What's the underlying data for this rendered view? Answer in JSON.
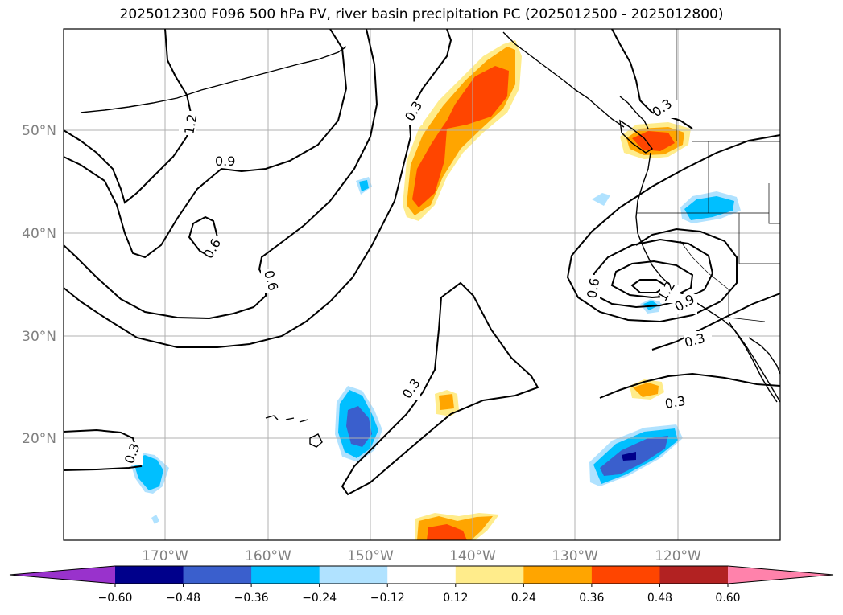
{
  "title": "2025012300 F096 500 hPa PV, river basin precipitation PC (2025012500 - 2025012800)",
  "map": {
    "lat_labels": [
      "50°N",
      "40°N",
      "30°N",
      "20°N"
    ],
    "lon_labels": [
      "170°W",
      "160°W",
      "150°W",
      "140°W",
      "130°W",
      "120°W"
    ],
    "contour_labels": [
      "1.2",
      "0.9",
      "0.6",
      "0.6",
      "0.3",
      "0.3",
      "0.3",
      "0.6",
      "1.2",
      "0.9",
      "0.3",
      "0.3",
      "0.3"
    ],
    "colors": {
      "land_outline": "#000000",
      "grid": "#b0b0b0",
      "contour": "#000000"
    }
  },
  "colorbar": {
    "ticks": [
      "−0.60",
      "−0.48",
      "−0.36",
      "−0.24",
      "−0.12",
      "0.12",
      "0.24",
      "0.36",
      "0.48",
      "0.60"
    ],
    "colors": [
      "#9932cc",
      "#00008b",
      "#3a5fcd",
      "#00bfff",
      "#b0e2ff",
      "#ffffff",
      "#ffec8b",
      "#ffa500",
      "#ff4500",
      "#b22222",
      "#ff82ab"
    ]
  }
}
